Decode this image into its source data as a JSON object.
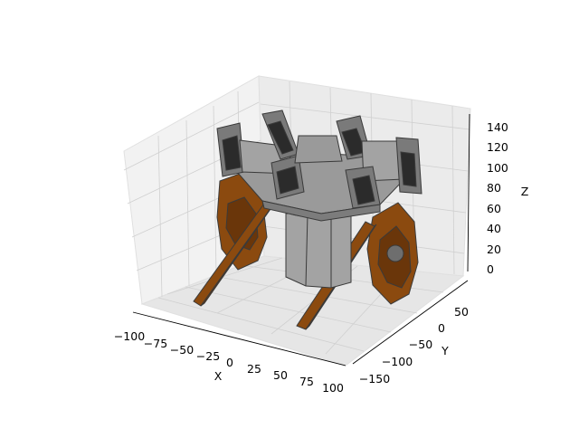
{
  "plot": {
    "type": "3d-mesh-render",
    "axes": {
      "x": {
        "label": "X",
        "ticks": [
          "−100",
          "−75",
          "−50",
          "−25",
          "0",
          "25",
          "50",
          "75",
          "100"
        ]
      },
      "y": {
        "label": "Y",
        "ticks": [
          "50",
          "0",
          "−50",
          "−100",
          "−150"
        ]
      },
      "z": {
        "label": "Z",
        "ticks": [
          "0",
          "20",
          "40",
          "60",
          "80",
          "100",
          "120",
          "140"
        ]
      }
    },
    "grid": true,
    "colors": {
      "body": "#a3a3a3",
      "body_dark": "#8a8a8a",
      "edge": "#3a3a3a",
      "wheel": "#8b4a0f",
      "wheel_dark": "#6a360a",
      "thruster_face": "#2b2b2b",
      "pane": "#f2f2f2",
      "grid": "#d0d0d0"
    }
  }
}
